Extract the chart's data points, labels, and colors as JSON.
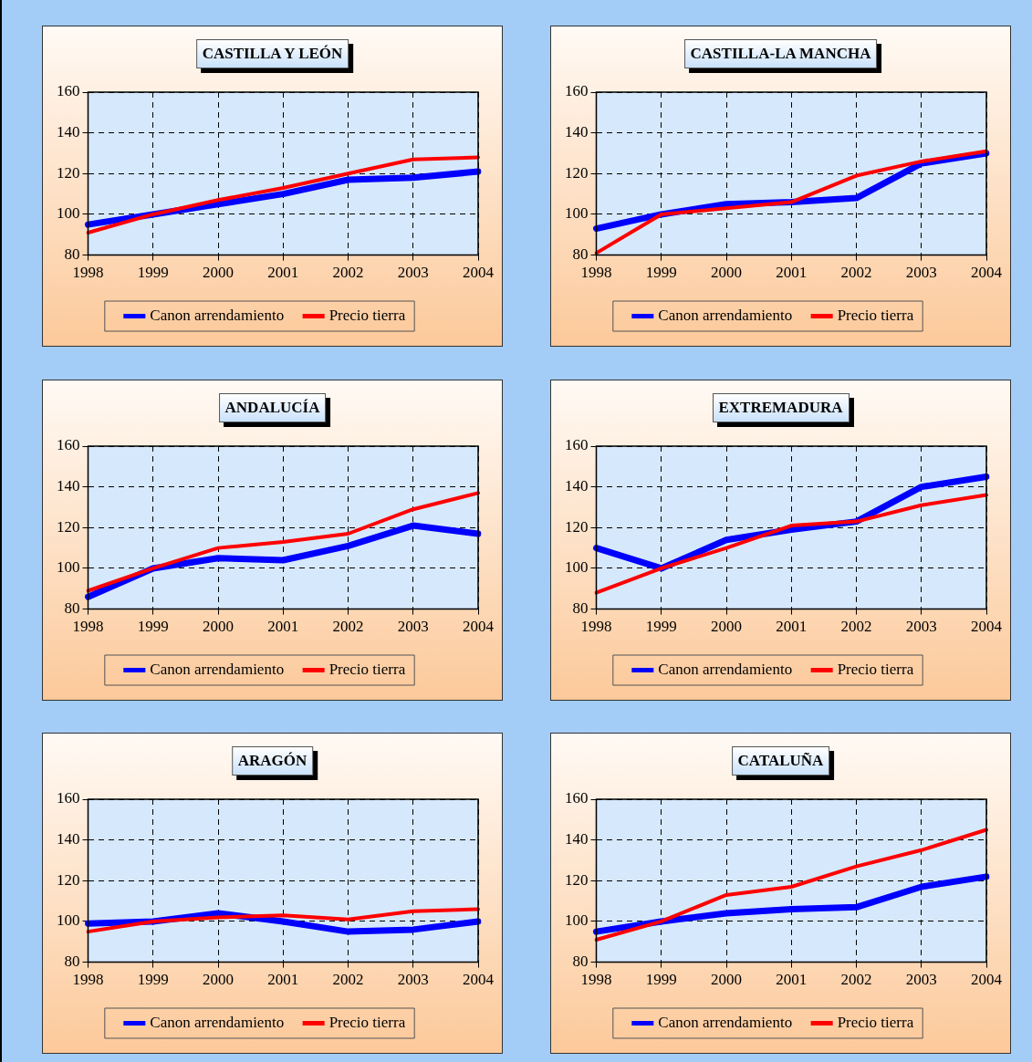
{
  "chart_data": [
    {
      "type": "line",
      "title": "CASTILLA Y LEÓN",
      "categories": [
        "1998",
        "1999",
        "2000",
        "2001",
        "2002",
        "2003",
        "2004"
      ],
      "ylim": [
        80,
        160
      ],
      "yticks": [
        80,
        100,
        120,
        140,
        160
      ],
      "grid": true,
      "legend": "bottom",
      "marker": "none",
      "series": [
        {
          "name": "Canon arrendamiento",
          "color": "#0000ff",
          "values": [
            95,
            100,
            105,
            110,
            117,
            118,
            121
          ]
        },
        {
          "name": "Precio tierra",
          "color": "#ff0000",
          "values": [
            91,
            100,
            107,
            113,
            120,
            127,
            128
          ]
        }
      ]
    },
    {
      "type": "line",
      "title": "CASTILLA-LA MANCHA",
      "categories": [
        "1998",
        "1999",
        "2000",
        "2001",
        "2002",
        "2003",
        "2004"
      ],
      "ylim": [
        80,
        160
      ],
      "yticks": [
        80,
        100,
        120,
        140,
        160
      ],
      "grid": true,
      "legend": "bottom",
      "marker": "none",
      "series": [
        {
          "name": "Canon arrendamiento",
          "color": "#0000ff",
          "values": [
            93,
            100,
            105,
            106,
            108,
            125,
            130
          ]
        },
        {
          "name": "Precio tierra",
          "color": "#ff0000",
          "values": [
            81,
            100,
            103,
            106,
            119,
            126,
            131
          ]
        }
      ]
    },
    {
      "type": "line",
      "title": "ANDALUCÍA",
      "categories": [
        "1998",
        "1999",
        "2000",
        "2001",
        "2002",
        "2003",
        "2004"
      ],
      "ylim": [
        80,
        160
      ],
      "yticks": [
        80,
        100,
        120,
        140,
        160
      ],
      "grid": true,
      "legend": "bottom",
      "marker": "none",
      "series": [
        {
          "name": "Canon arrendamiento",
          "color": "#0000ff",
          "values": [
            86,
            100,
            105,
            104,
            111,
            121,
            117
          ]
        },
        {
          "name": "Precio tierra",
          "color": "#ff0000",
          "values": [
            89,
            100,
            110,
            113,
            117,
            129,
            137
          ]
        }
      ]
    },
    {
      "type": "line",
      "title": "EXTREMADURA",
      "categories": [
        "1998",
        "1999",
        "2000",
        "2001",
        "2002",
        "2003",
        "2004"
      ],
      "ylim": [
        80,
        160
      ],
      "yticks": [
        80,
        100,
        120,
        140,
        160
      ],
      "grid": true,
      "legend": "bottom",
      "marker": "none",
      "series": [
        {
          "name": "Canon arrendamiento",
          "color": "#0000ff",
          "values": [
            110,
            100,
            114,
            119,
            123,
            140,
            145
          ]
        },
        {
          "name": "Precio tierra",
          "color": "#ff0000",
          "values": [
            88,
            100,
            110,
            121,
            123,
            131,
            136
          ]
        }
      ]
    },
    {
      "type": "line",
      "title": "ARAGÓN",
      "categories": [
        "1998",
        "1999",
        "2000",
        "2001",
        "2002",
        "2003",
        "2004"
      ],
      "ylim": [
        80,
        160
      ],
      "yticks": [
        80,
        100,
        120,
        140,
        160
      ],
      "grid": true,
      "legend": "bottom",
      "marker": "none",
      "series": [
        {
          "name": "Canon arrendamiento",
          "color": "#0000ff",
          "values": [
            99,
            100,
            104,
            100,
            95,
            96,
            100
          ]
        },
        {
          "name": "Precio tierra",
          "color": "#ff0000",
          "values": [
            95,
            100,
            102,
            103,
            101,
            105,
            106
          ]
        }
      ]
    },
    {
      "type": "line",
      "title": "CATALUÑA",
      "categories": [
        "1998",
        "1999",
        "2000",
        "2001",
        "2002",
        "2003",
        "2004"
      ],
      "ylim": [
        80,
        160
      ],
      "yticks": [
        80,
        100,
        120,
        140,
        160
      ],
      "grid": true,
      "legend": "bottom",
      "marker": "none",
      "series": [
        {
          "name": "Canon arrendamiento",
          "color": "#0000ff",
          "values": [
            95,
            100,
            104,
            106,
            107,
            117,
            122
          ]
        },
        {
          "name": "Precio tierra",
          "color": "#ff0000",
          "values": [
            91,
            100,
            113,
            117,
            127,
            135,
            145
          ]
        }
      ]
    }
  ]
}
